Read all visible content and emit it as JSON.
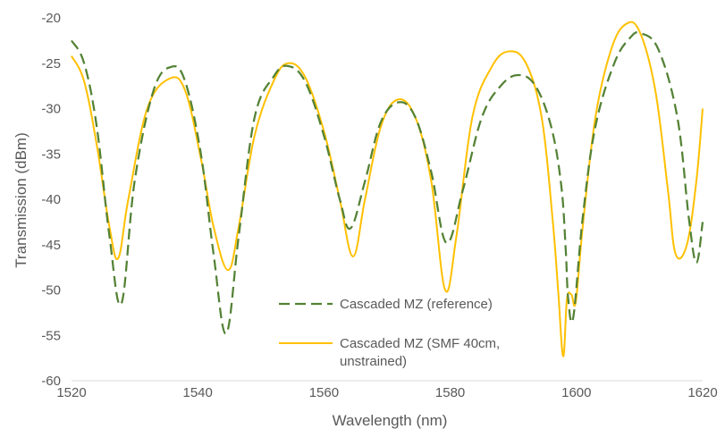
{
  "chart_data": {
    "type": "line",
    "title": "",
    "xlabel": "Wavelength (nm)",
    "ylabel": "Transmission (dBm)",
    "xlim": [
      1520,
      1620
    ],
    "ylim": [
      -60,
      -20
    ],
    "x_ticks": [
      1520,
      1540,
      1560,
      1580,
      1600,
      1620
    ],
    "y_ticks": [
      -60,
      -55,
      -50,
      -45,
      -40,
      -35,
      -30,
      -25,
      -20
    ],
    "grid": false,
    "legend_position": "inside-lower-center",
    "series": [
      {
        "name": "Cascaded MZ (reference)",
        "color": "#548235",
        "dash": "dashed",
        "x": [
          1520,
          1522,
          1524,
          1526,
          1527.9,
          1530,
          1533,
          1535.8,
          1538,
          1540.5,
          1542.5,
          1544.5,
          1546.5,
          1549,
          1552,
          1554.2,
          1557,
          1560,
          1562.5,
          1564.2,
          1566.5,
          1569,
          1571.9,
          1574.5,
          1577,
          1579.4,
          1582,
          1585,
          1588,
          1590.8,
          1593.5,
          1596,
          1597.6,
          1598.3,
          1598.7,
          1599.5,
          1601,
          1603,
          1606,
          1608.5,
          1610.2,
          1613,
          1616,
          1617.8,
          1619,
          1620
        ],
        "y": [
          -22.5,
          -25,
          -32,
          -44,
          -51.5,
          -38,
          -28,
          -25.4,
          -27,
          -35,
          -46,
          -54.8,
          -44,
          -31,
          -26.5,
          -25.3,
          -27,
          -33,
          -40,
          -43.2,
          -38,
          -31.5,
          -29.3,
          -31,
          -37,
          -44.8,
          -39,
          -31,
          -27.5,
          -26.3,
          -27.5,
          -32,
          -38.5,
          -45.5,
          -51,
          -53,
          -42,
          -32,
          -25,
          -22.2,
          -21.7,
          -23.5,
          -31,
          -42,
          -47,
          -42.5
        ]
      },
      {
        "name": "Cascaded MZ (SMF 40cm, unstrained)",
        "color": "#FFC000",
        "dash": "solid",
        "x": [
          1520,
          1522,
          1524,
          1526,
          1527.4,
          1529,
          1532,
          1535.5,
          1538,
          1540.5,
          1542.5,
          1544.8,
          1546.5,
          1549,
          1552,
          1554.3,
          1557,
          1560,
          1562.5,
          1564.6,
          1566.5,
          1569,
          1571.7,
          1574.5,
          1577,
          1579.2,
          1581,
          1583.5,
          1586.5,
          1589.2,
          1592,
          1594.5,
          1596.2,
          1597.1,
          1597.9,
          1598.5,
          1599.2,
          1599.9,
          1601,
          1603,
          1605.5,
          1607.8,
          1610,
          1612.5,
          1614.5,
          1615.7,
          1617.5,
          1619,
          1620
        ],
        "y": [
          -24.2,
          -27,
          -34,
          -43,
          -46.5,
          -40,
          -30,
          -26.7,
          -28,
          -35.5,
          -43,
          -47.8,
          -43,
          -33,
          -27,
          -25,
          -26.5,
          -32.5,
          -40,
          -46.3,
          -40,
          -32,
          -29,
          -31,
          -38,
          -50,
          -44,
          -31,
          -25.5,
          -23.7,
          -25,
          -31,
          -42,
          -50,
          -57.3,
          -51,
          -50.5,
          -51.3,
          -43,
          -31,
          -23.5,
          -20.7,
          -21.5,
          -28,
          -39,
          -46,
          -45,
          -38,
          -30
        ]
      }
    ]
  }
}
